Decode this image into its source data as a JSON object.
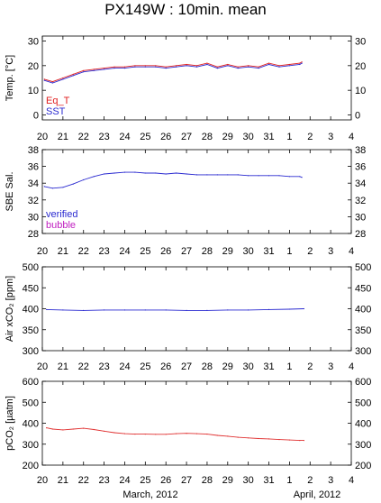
{
  "chart_data": {
    "type": "line",
    "title": "PX149W : 10min. mean",
    "x_tick_labels": [
      "20",
      "21",
      "22",
      "23",
      "24",
      "25",
      "26",
      "27",
      "28",
      "29",
      "30",
      "31",
      "1",
      "2",
      "3",
      "4"
    ],
    "x_month_labels": [
      "March, 2012",
      "April, 2012"
    ],
    "panels": [
      {
        "id": "temp",
        "ylabel": "Temp. [°C]",
        "ylim": [
          -2,
          32
        ],
        "yticks": [
          "0",
          "10",
          "20",
          "30"
        ],
        "legend": [
          {
            "text": "Eq_T",
            "color": "#e02020"
          },
          {
            "text": "SST",
            "color": "#2a2ad0"
          }
        ],
        "series": [
          {
            "name": "Eq_T",
            "color": "#e02020",
            "x": [
              20.1,
              20.5,
              21.0,
              21.5,
              22.0,
              22.5,
              23.0,
              23.5,
              24.0,
              24.5,
              25.0,
              25.5,
              26.0,
              26.5,
              27.0,
              27.5,
              28.0,
              28.5,
              29.0,
              29.5,
              30.0,
              30.5,
              31.0,
              31.5,
              32.0,
              32.5,
              32.6
            ],
            "values": [
              14.5,
              13.5,
              15.0,
              16.5,
              18.0,
              18.5,
              19.0,
              19.5,
              19.5,
              20.0,
              20.0,
              20.0,
              19.5,
              20.0,
              20.5,
              20.0,
              21.0,
              19.5,
              20.5,
              19.5,
              20.0,
              19.5,
              21.0,
              20.0,
              20.5,
              21.0,
              21.5
            ]
          },
          {
            "name": "SST",
            "color": "#2a2ad0",
            "x": [
              20.1,
              20.5,
              21.0,
              21.5,
              22.0,
              22.5,
              23.0,
              23.5,
              24.0,
              24.5,
              25.0,
              25.5,
              26.0,
              26.5,
              27.0,
              27.5,
              28.0,
              28.5,
              29.0,
              29.5,
              30.0,
              30.5,
              31.0,
              31.5,
              32.0,
              32.5,
              32.6
            ],
            "values": [
              14.0,
              13.0,
              14.5,
              16.0,
              17.5,
              18.0,
              18.5,
              19.0,
              19.0,
              19.5,
              19.5,
              19.5,
              19.0,
              19.5,
              20.0,
              19.5,
              20.5,
              19.0,
              20.0,
              19.0,
              19.5,
              19.0,
              20.5,
              19.5,
              20.0,
              20.5,
              21.0
            ]
          }
        ]
      },
      {
        "id": "sal",
        "ylabel": "SBE Sal.",
        "ylim": [
          28,
          38
        ],
        "yticks": [
          "28",
          "30",
          "32",
          "34",
          "36",
          "38"
        ],
        "legend": [
          {
            "text": "verified",
            "color": "#2a2ad0"
          },
          {
            "text": "bubble",
            "color": "#c020c0"
          }
        ],
        "series": [
          {
            "name": "verified",
            "color": "#2a2ad0",
            "x": [
              20.1,
              20.5,
              21.0,
              21.5,
              22.0,
              22.5,
              23.0,
              23.5,
              24.0,
              24.5,
              25.0,
              25.5,
              26.0,
              26.5,
              27.0,
              27.5,
              28.0,
              28.5,
              29.0,
              29.5,
              30.0,
              30.5,
              31.0,
              31.5,
              32.0,
              32.5,
              32.6
            ],
            "values": [
              33.6,
              33.4,
              33.5,
              33.9,
              34.4,
              34.8,
              35.1,
              35.2,
              35.3,
              35.3,
              35.2,
              35.2,
              35.1,
              35.2,
              35.1,
              35.0,
              35.0,
              35.0,
              35.0,
              35.0,
              34.9,
              34.9,
              34.9,
              34.9,
              34.8,
              34.8,
              34.7
            ]
          }
        ]
      },
      {
        "id": "air",
        "ylabel": "Air xCO₂ [ppm]",
        "ylim": [
          300,
          500
        ],
        "yticks": [
          "300",
          "350",
          "400",
          "450",
          "500"
        ],
        "legend": [],
        "series": [
          {
            "name": "Air xCO2",
            "color": "#2a2ad0",
            "x": [
              20.2,
              21.0,
              22.0,
              23.0,
              24.0,
              25.0,
              26.0,
              27.0,
              28.0,
              29.0,
              30.0,
              31.0,
              32.0,
              32.7
            ],
            "values": [
              398,
              397,
              396,
              397,
              397,
              397,
              397,
              396,
              396,
              397,
              397,
              398,
              399,
              400
            ]
          }
        ]
      },
      {
        "id": "pco2",
        "ylabel": "pCO₂ [µatm]",
        "ylim": [
          200,
          600
        ],
        "yticks": [
          "200",
          "300",
          "400",
          "500",
          "600"
        ],
        "legend": [],
        "series": [
          {
            "name": "pCO2",
            "color": "#e03030",
            "x": [
              20.2,
              20.5,
              21.0,
              21.5,
              22.0,
              22.5,
              23.0,
              23.5,
              24.0,
              24.5,
              25.0,
              25.5,
              26.0,
              26.5,
              27.0,
              27.5,
              28.0,
              28.5,
              29.0,
              29.5,
              30.0,
              30.5,
              31.0,
              31.5,
              32.0,
              32.5,
              32.7
            ],
            "values": [
              378,
              372,
              368,
              372,
              376,
              370,
              362,
              355,
              350,
              348,
              348,
              347,
              347,
              350,
              352,
              350,
              348,
              342,
              338,
              333,
              330,
              327,
              325,
              322,
              320,
              318,
              318
            ]
          }
        ]
      }
    ]
  }
}
